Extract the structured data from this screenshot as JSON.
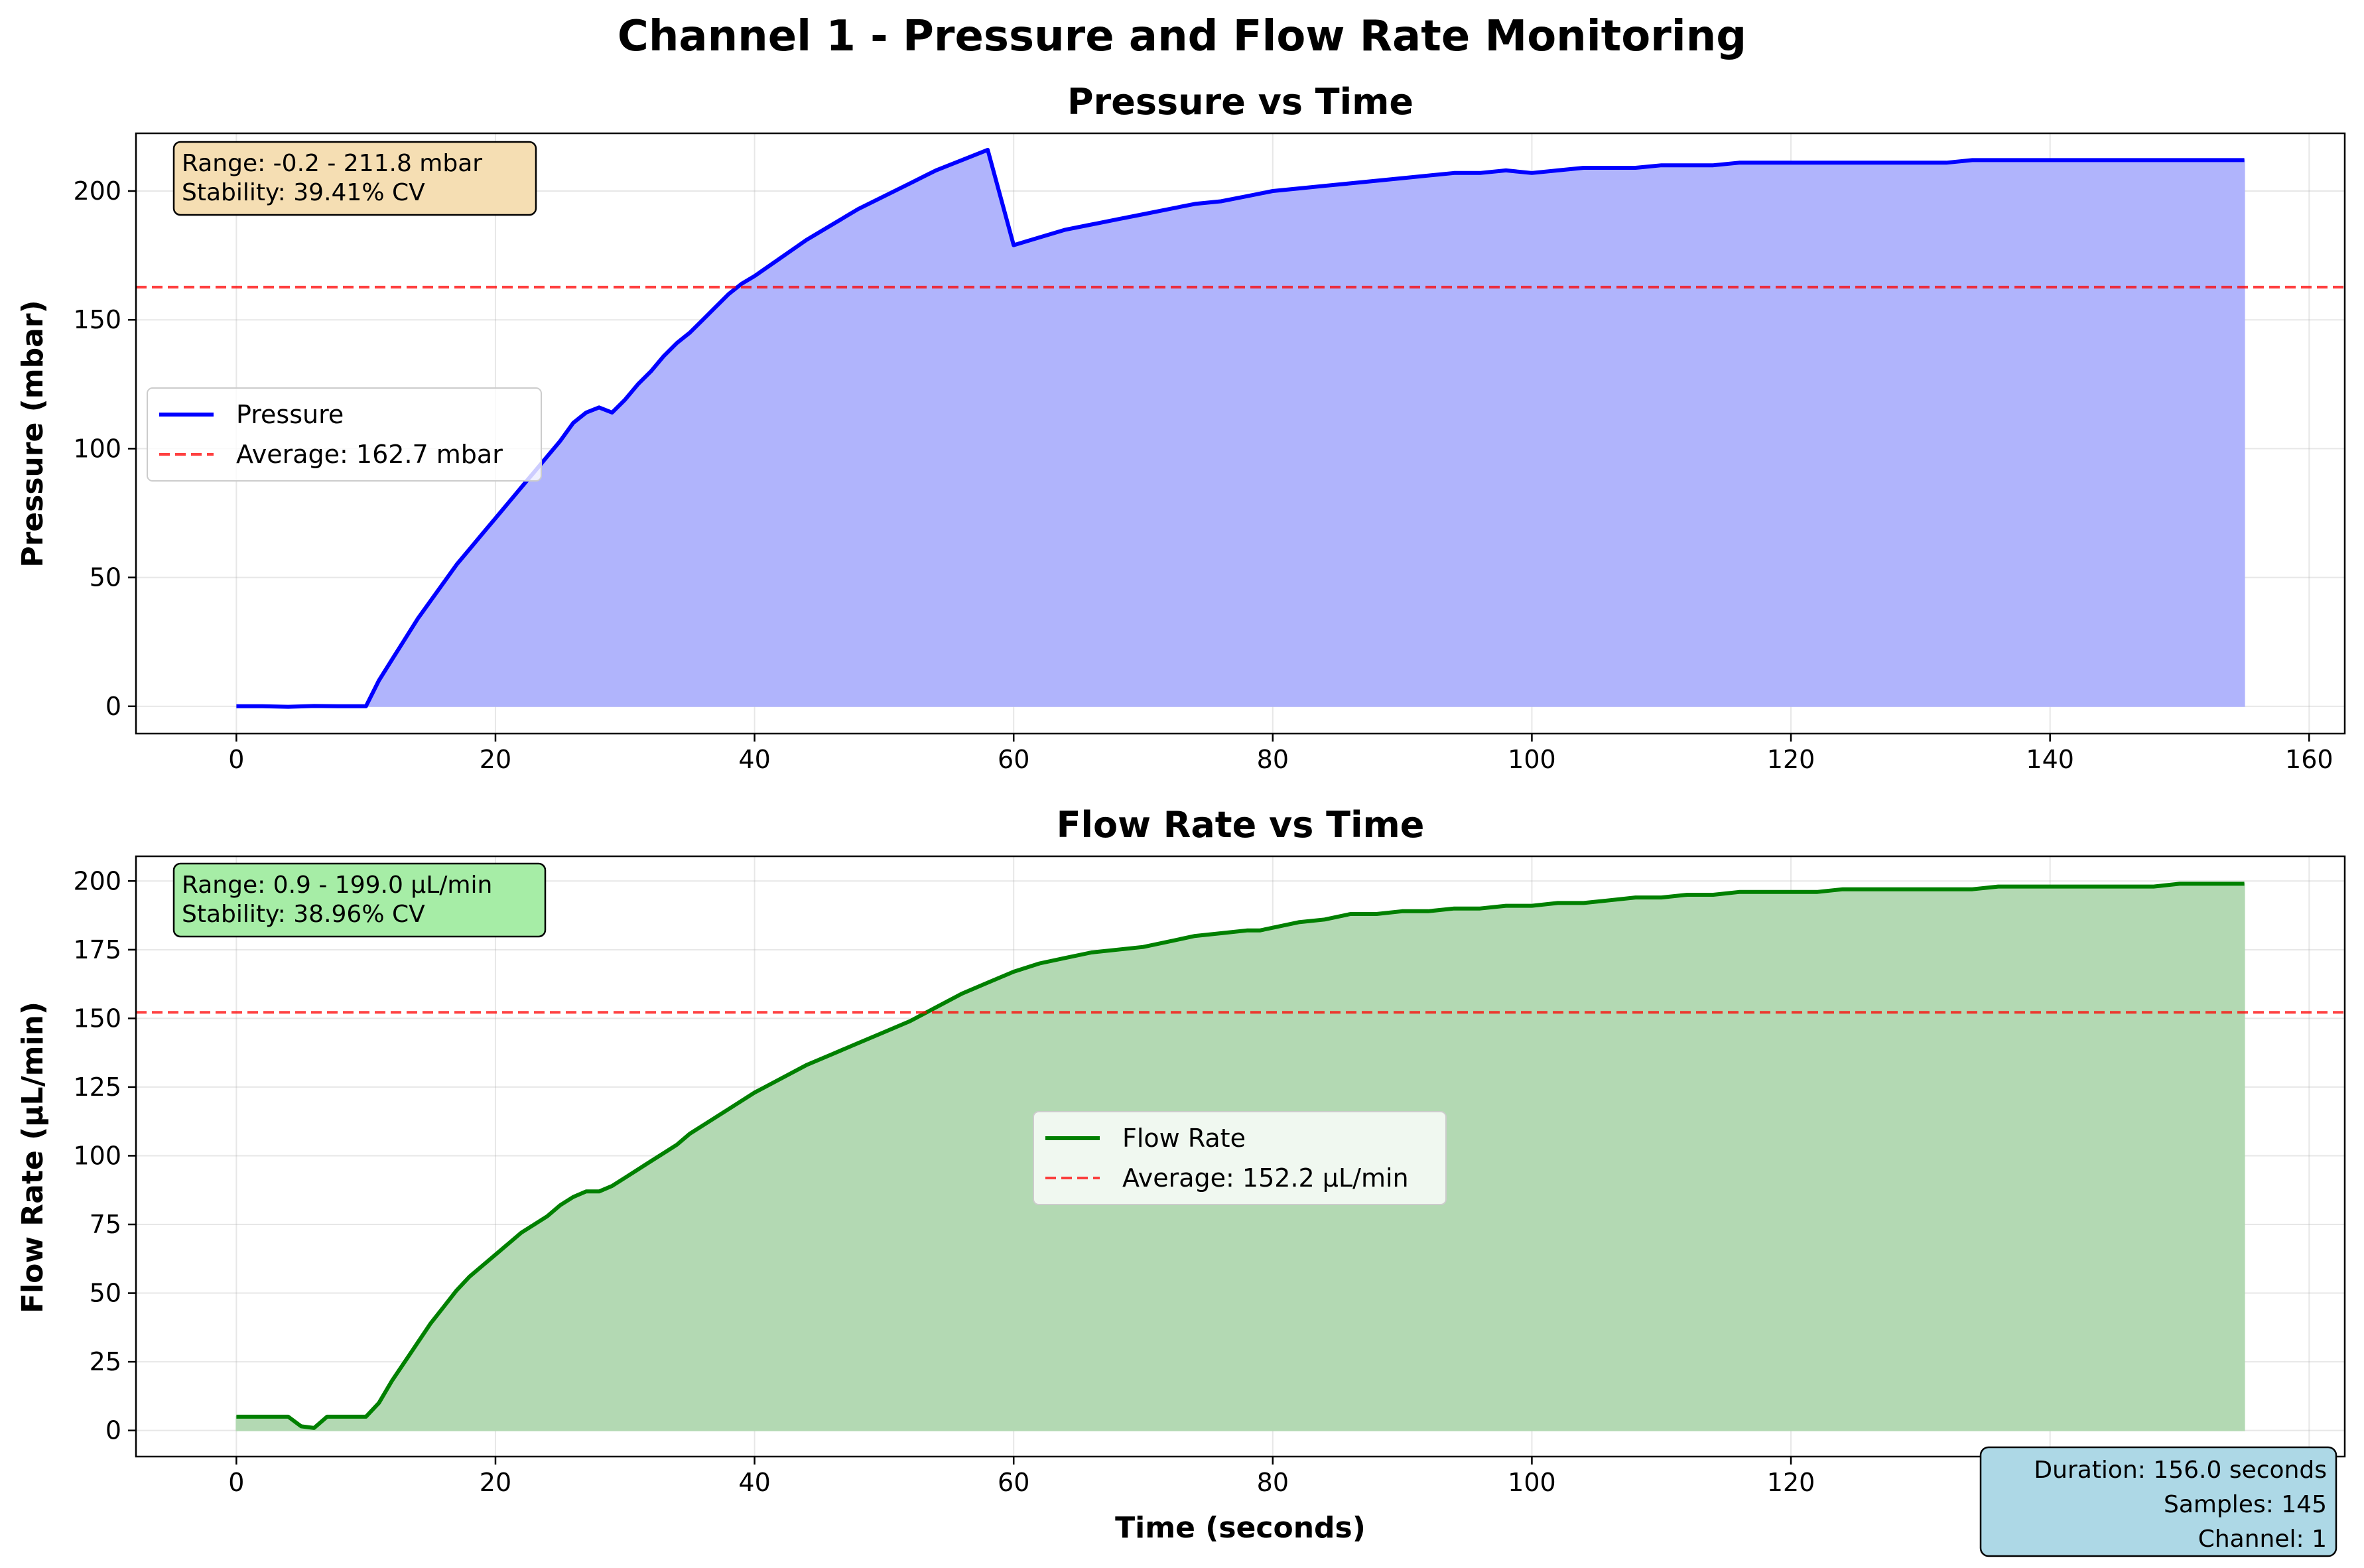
{
  "title": "Channel 1 - Pressure and Flow Rate Monitoring",
  "chart_data": [
    {
      "type": "area",
      "title": "Pressure vs Time",
      "xlabel": "",
      "ylabel": "Pressure (mbar)",
      "xlim": [
        -7.75,
        162.75
      ],
      "ylim": [
        -10.6,
        222.4
      ],
      "xticks": [
        0,
        20,
        40,
        60,
        80,
        100,
        120,
        140,
        160
      ],
      "yticks": [
        0,
        50,
        100,
        150,
        200
      ],
      "grid": true,
      "legend_placement": "center-left",
      "series": [
        {
          "name": "Pressure",
          "color": "#0000ff",
          "fill_color": "#b0b4fc",
          "x": [
            0,
            2,
            4,
            6,
            8,
            9,
            10,
            11,
            12,
            13,
            14,
            15,
            16,
            17,
            18,
            19,
            20,
            21,
            22,
            23,
            24,
            25,
            26,
            27,
            28,
            29,
            30,
            31,
            32,
            33,
            34,
            35,
            36,
            37,
            38,
            39,
            40,
            42,
            44,
            46,
            48,
            50,
            52,
            54,
            56,
            58,
            60,
            62,
            64,
            66,
            68,
            70,
            72,
            74,
            76,
            78,
            80,
            82,
            84,
            86,
            88,
            90,
            92,
            94,
            96,
            98,
            100,
            102,
            104,
            106,
            108,
            110,
            112,
            114,
            116,
            118,
            120,
            122,
            124,
            126,
            128,
            130,
            132,
            134,
            136,
            138,
            140,
            142,
            144,
            146,
            148,
            150,
            152,
            155
          ],
          "y": [
            0,
            0,
            -0.2,
            0.1,
            0,
            0,
            0,
            10,
            18,
            26,
            34,
            41,
            48,
            55,
            61,
            67,
            73,
            79,
            85,
            91,
            97,
            103,
            110,
            114,
            116,
            114,
            119,
            125,
            130,
            136,
            141,
            145,
            150,
            155,
            160,
            164,
            167,
            174,
            181,
            187,
            193,
            198,
            203,
            208,
            212,
            216,
            179,
            182,
            185,
            187,
            189,
            191,
            193,
            195,
            196,
            198,
            200,
            201,
            202,
            203,
            204,
            205,
            206,
            207,
            207,
            208,
            207,
            208,
            209,
            209,
            209,
            210,
            210,
            210,
            211,
            211,
            211,
            211,
            211,
            211,
            211,
            211,
            211,
            212,
            212,
            212,
            212,
            212,
            212,
            212,
            212,
            212,
            212,
            212
          ]
        },
        {
          "name": "Average: 162.7 mbar",
          "color": "#ff0000",
          "value": 162.7
        }
      ],
      "annotation": {
        "lines": [
          "Range: -0.2 - 211.8 mbar",
          "Stability: 39.41% CV"
        ],
        "background": "#f5deb3"
      }
    },
    {
      "type": "area",
      "title": "Flow Rate vs Time",
      "xlabel": "Time (seconds)",
      "ylabel": "Flow Rate (μL/min)",
      "xlim": [
        -7.75,
        162.75
      ],
      "ylim": [
        -9.5,
        209.0
      ],
      "xticks": [
        0,
        20,
        40,
        60,
        80,
        100,
        120,
        140,
        160
      ],
      "yticks": [
        0,
        25,
        50,
        75,
        100,
        125,
        150,
        175,
        200
      ],
      "grid": true,
      "legend_placement": "center",
      "series": [
        {
          "name": "Flow Rate",
          "color": "#008000",
          "fill_color": "#b3d9b3",
          "x": [
            0,
            2,
            4,
            5,
            6,
            7,
            8,
            9,
            10,
            11,
            12,
            13,
            14,
            15,
            16,
            17,
            18,
            19,
            20,
            21,
            22,
            23,
            24,
            25,
            26,
            27,
            28,
            29,
            30,
            31,
            32,
            33,
            34,
            35,
            36,
            37,
            38,
            39,
            40,
            42,
            44,
            46,
            48,
            50,
            52,
            54,
            56,
            58,
            60,
            62,
            64,
            66,
            68,
            70,
            72,
            74,
            76,
            78,
            79,
            80,
            82,
            84,
            86,
            88,
            90,
            92,
            94,
            96,
            98,
            100,
            102,
            103,
            104,
            106,
            108,
            110,
            112,
            114,
            116,
            118,
            119,
            120,
            122,
            124,
            126,
            128,
            130,
            132,
            133,
            134,
            136,
            138,
            140,
            142,
            144,
            146,
            148,
            150,
            152,
            155
          ],
          "y": [
            5,
            5,
            5,
            1.5,
            0.9,
            5,
            5,
            5,
            5,
            10,
            18,
            25,
            32,
            39,
            45,
            51,
            56,
            60,
            64,
            68,
            72,
            75,
            78,
            82,
            85,
            87,
            87,
            89,
            92,
            95,
            98,
            101,
            104,
            108,
            111,
            114,
            117,
            120,
            123,
            128,
            133,
            137,
            141,
            145,
            149,
            154,
            159,
            163,
            167,
            170,
            172,
            174,
            175,
            176,
            178,
            180,
            181,
            182,
            182,
            183,
            185,
            186,
            188,
            188,
            189,
            189,
            190,
            190,
            191,
            191,
            192,
            192,
            192,
            193,
            194,
            194,
            195,
            195,
            196,
            196,
            196,
            196,
            196,
            197,
            197,
            197,
            197,
            197,
            197,
            197,
            198,
            198,
            198,
            198,
            198,
            198,
            198,
            199,
            199,
            199
          ]
        },
        {
          "name": "Average: 152.2 μL/min",
          "color": "#ff0000",
          "value": 152.2
        }
      ],
      "annotation": {
        "lines": [
          "Range: 0.9 - 199.0 μL/min",
          "Stability: 38.96% CV"
        ],
        "background": "#a6eda6"
      }
    }
  ],
  "footer_box": {
    "lines": [
      "Duration: 156.0 seconds",
      "Samples: 145",
      "Channel: 1"
    ],
    "background": "#add8e6"
  }
}
